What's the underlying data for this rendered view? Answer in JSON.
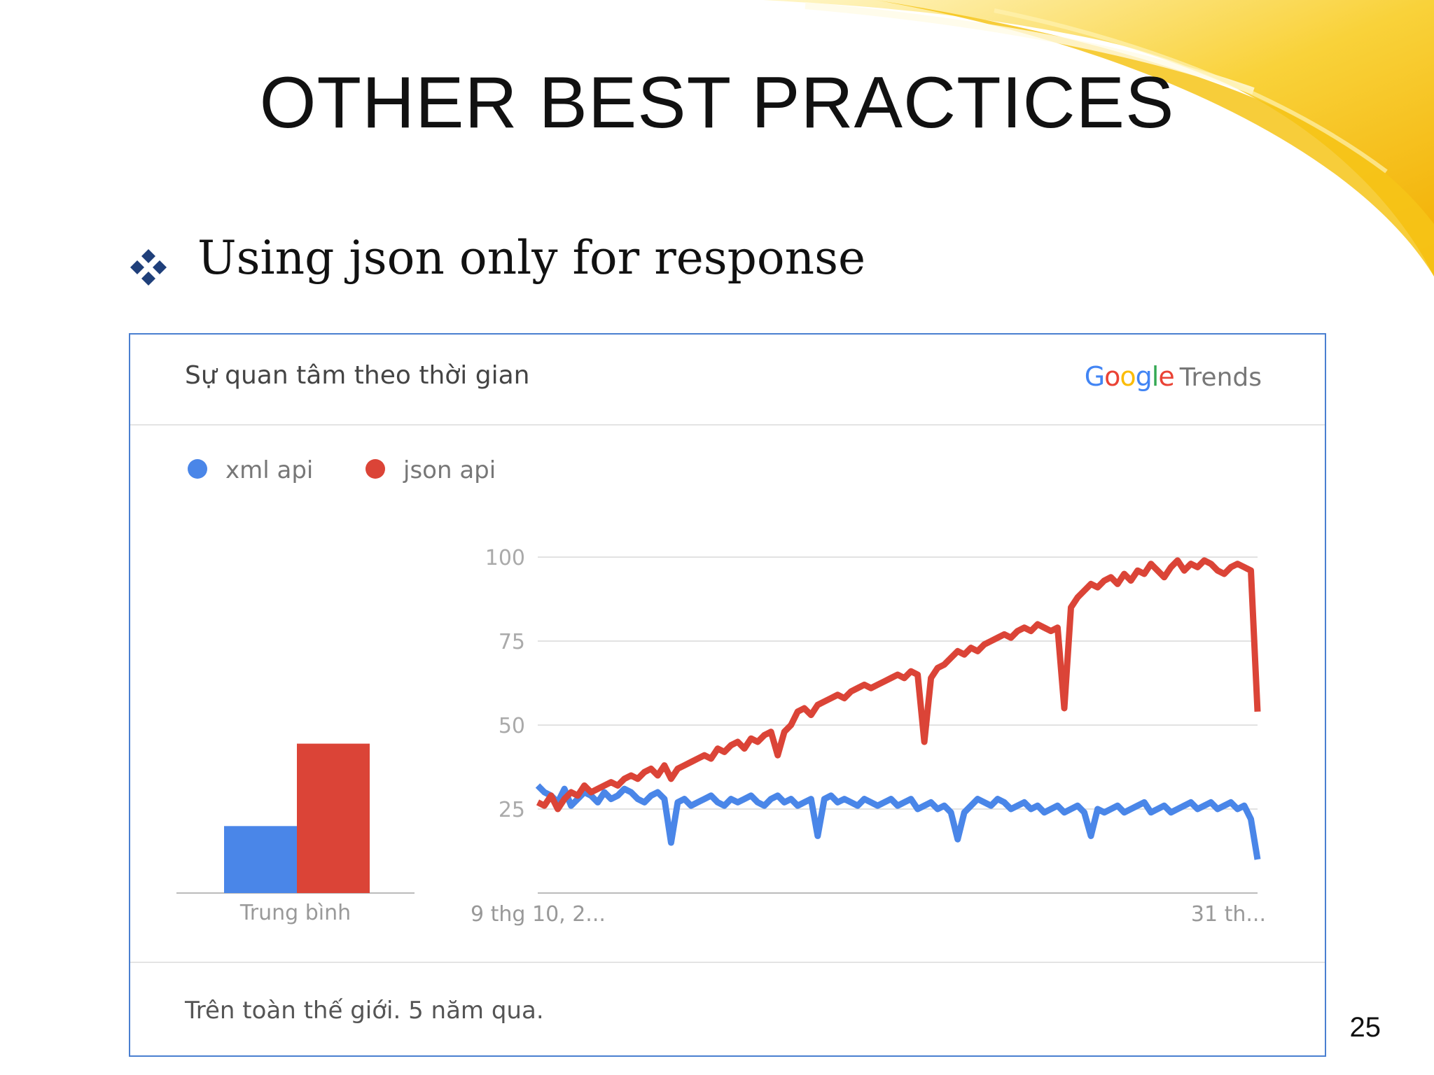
{
  "slide": {
    "title": "OTHER BEST PRACTICES",
    "bullet": "Using json only for response",
    "page_number": "25",
    "accent_color": "#f7c21a"
  },
  "card": {
    "title": "Sự quan tâm theo thời gian",
    "brand": {
      "letters": [
        "G",
        "o",
        "o",
        "g",
        "l",
        "e"
      ],
      "letter_colors": [
        "#4285f4",
        "#ea4335",
        "#fbbc05",
        "#4285f4",
        "#34a853",
        "#ea4335"
      ],
      "suffix": "Trends"
    },
    "footer": "Trên toàn thế giới. 5 năm qua."
  },
  "chart_data": [
    {
      "type": "bar",
      "title": "",
      "categories": [
        "Trung bình"
      ],
      "series": [
        {
          "name": "xml api",
          "color": "#4a86e8",
          "values": [
            26
          ]
        },
        {
          "name": "json api",
          "color": "#db4437",
          "values": [
            58
          ]
        }
      ],
      "ylim": [
        0,
        100
      ]
    },
    {
      "type": "line",
      "title": "",
      "x_tick_labels": [
        "9 thg 10, 2...",
        "31 th..."
      ],
      "y_ticks": [
        25,
        50,
        75,
        100
      ],
      "ylim": [
        0,
        100
      ],
      "grid": true,
      "legend": "top-left",
      "series": [
        {
          "name": "xml api",
          "color": "#4a86e8",
          "values": [
            32,
            30,
            29,
            27,
            31,
            26,
            28,
            30,
            29,
            27,
            30,
            28,
            29,
            31,
            30,
            28,
            27,
            29,
            30,
            28,
            15,
            27,
            28,
            26,
            27,
            28,
            29,
            27,
            26,
            28,
            27,
            28,
            29,
            27,
            26,
            28,
            29,
            27,
            28,
            26,
            27,
            28,
            17,
            28,
            29,
            27,
            28,
            27,
            26,
            28,
            27,
            26,
            27,
            28,
            26,
            27,
            28,
            25,
            26,
            27,
            25,
            26,
            24,
            16,
            24,
            26,
            28,
            27,
            26,
            28,
            27,
            25,
            26,
            27,
            25,
            26,
            24,
            25,
            26,
            24,
            25,
            26,
            24,
            17,
            25,
            24,
            25,
            26,
            24,
            25,
            26,
            27,
            24,
            25,
            26,
            24,
            25,
            26,
            27,
            25,
            26,
            27,
            25,
            26,
            27,
            25,
            26,
            22,
            10
          ]
        },
        {
          "name": "json api",
          "color": "#db4437",
          "values": [
            27,
            26,
            29,
            25,
            28,
            30,
            29,
            32,
            30,
            31,
            32,
            33,
            32,
            34,
            35,
            34,
            36,
            37,
            35,
            38,
            34,
            37,
            38,
            39,
            40,
            41,
            40,
            43,
            42,
            44,
            45,
            43,
            46,
            45,
            47,
            48,
            41,
            48,
            50,
            54,
            55,
            53,
            56,
            57,
            58,
            59,
            58,
            60,
            61,
            62,
            61,
            62,
            63,
            64,
            65,
            64,
            66,
            65,
            45,
            64,
            67,
            68,
            70,
            72,
            71,
            73,
            72,
            74,
            75,
            76,
            77,
            76,
            78,
            79,
            78,
            80,
            79,
            78,
            79,
            55,
            85,
            88,
            90,
            92,
            91,
            93,
            94,
            92,
            95,
            93,
            96,
            95,
            98,
            96,
            94,
            97,
            99,
            96,
            98,
            97,
            99,
            98,
            96,
            95,
            97,
            98,
            97,
            96,
            54
          ]
        }
      ]
    }
  ]
}
